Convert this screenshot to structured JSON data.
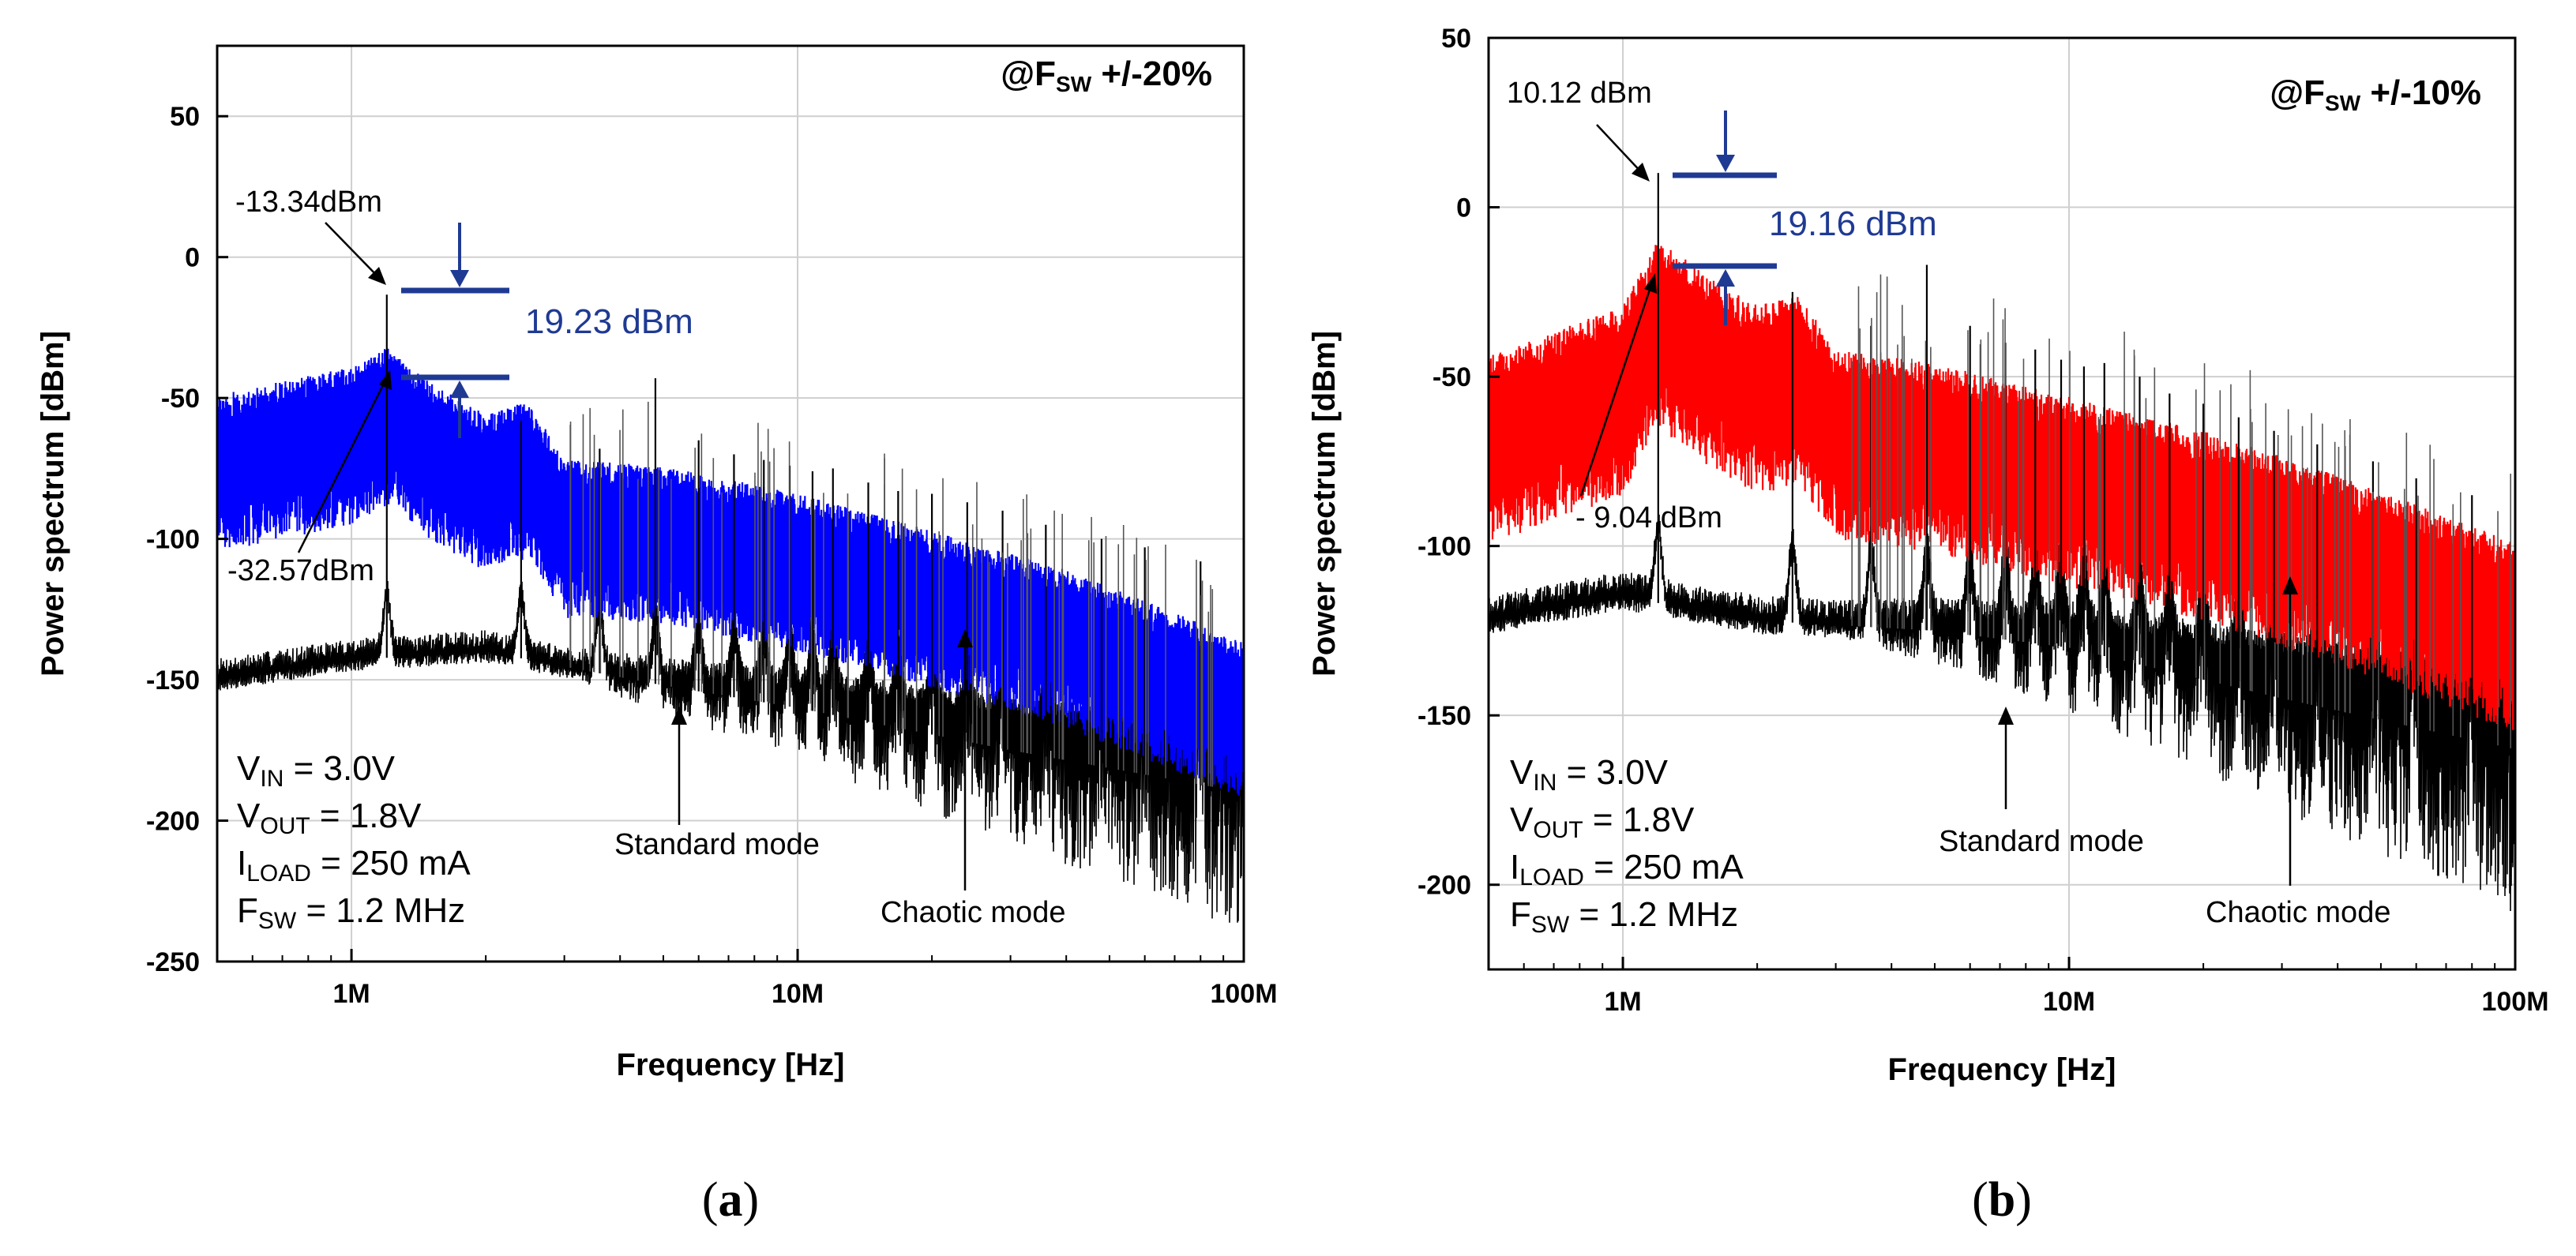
{
  "chart_data": [
    {
      "type": "line",
      "panel_label": "a",
      "mode_tag": {
        "prefix": "@F",
        "sub": "SW",
        "suffix": " +/-20%"
      },
      "xlabel": "Frequency [Hz]",
      "ylabel": "Power spectrum [dBm]",
      "x_scale": "log",
      "xlim": [
        500000,
        100000000
      ],
      "ylim": [
        -250,
        75
      ],
      "x_ticks": [
        {
          "value": 1000000,
          "label": "1M"
        },
        {
          "value": 10000000,
          "label": "10M"
        },
        {
          "value": 100000000,
          "label": "100M"
        }
      ],
      "y_ticks": [
        {
          "value": 50,
          "label": "50"
        },
        {
          "value": 0,
          "label": "0"
        },
        {
          "value": -50,
          "label": "-50"
        },
        {
          "value": -100,
          "label": "-100"
        },
        {
          "value": -150,
          "label": "-150"
        },
        {
          "value": -200,
          "label": "-200"
        },
        {
          "value": -250,
          "label": "-250"
        }
      ],
      "grid": true,
      "series": [
        {
          "color": "#000000",
          "fsw": 1200000,
          "peak": -13.34,
          "envelope": [
            [
              500000,
              -150
            ],
            [
              1000000,
              -143
            ],
            [
              2000000,
              -140
            ],
            [
              5000000,
              -152
            ],
            [
              10000000,
              -160
            ],
            [
              30000000,
              -175
            ],
            [
              100000000,
              -190
            ]
          ],
          "harmonics": [
            [
              1200000,
              -13.34
            ],
            [
              2400000,
              -58
            ],
            [
              3600000,
              -68
            ],
            [
              4800000,
              -43
            ],
            [
              6000000,
              -65
            ],
            [
              7200000,
              -70
            ],
            [
              8400000,
              -72
            ],
            [
              9600000,
              -74
            ],
            [
              10800000,
              -76
            ],
            [
              12000000,
              -75
            ],
            [
              14400000,
              -80
            ],
            [
              16800000,
              -83
            ],
            [
              20000000,
              -84
            ],
            [
              24000000,
              -87
            ],
            [
              28800000,
              -90
            ],
            [
              36000000,
              -95
            ],
            [
              48000000,
              -100
            ],
            [
              60000000,
              -103
            ],
            [
              80000000,
              -108
            ]
          ]
        },
        {
          "color": "#0000ff",
          "fsw": 1200000,
          "peak": -32.57,
          "envelope": [
            [
              500000,
              -65
            ],
            [
              1000000,
              -55
            ],
            [
              1200000,
              -48
            ],
            [
              1500000,
              -60
            ],
            [
              2000000,
              -72
            ],
            [
              2500000,
              -67
            ],
            [
              3000000,
              -88
            ],
            [
              5000000,
              -90
            ],
            [
              10000000,
              -100
            ],
            [
              20000000,
              -113
            ],
            [
              40000000,
              -127
            ],
            [
              100000000,
              -152
            ]
          ]
        }
      ],
      "peak_labels": {
        "standard": "-13.34dBm",
        "chaotic": "-32.57dBm"
      },
      "difference_label": "19.23 dBm",
      "conditions": [
        {
          "prefix": "V",
          "sub": "IN",
          "suffix": " = 3.0V"
        },
        {
          "prefix": "V",
          "sub": "OUT",
          "suffix": " = 1.8V"
        },
        {
          "prefix": "I",
          "sub": "LOAD",
          "suffix": " = 250 mA"
        },
        {
          "prefix": "F",
          "sub": "SW",
          "suffix": " = 1.2 MHz"
        }
      ],
      "mode_labels": {
        "standard": "Standard mode",
        "chaotic": "Chaotic mode"
      }
    },
    {
      "type": "line",
      "panel_label": "b",
      "mode_tag": {
        "prefix": "@F",
        "sub": "SW",
        "suffix": " +/-10%"
      },
      "xlabel": "Frequency [Hz]",
      "ylabel": "Power spectrum [dBm]",
      "x_scale": "log",
      "xlim": [
        500000,
        100000000
      ],
      "ylim": [
        -225,
        50
      ],
      "x_ticks": [
        {
          "value": 1000000,
          "label": "1M"
        },
        {
          "value": 10000000,
          "label": "10M"
        },
        {
          "value": 100000000,
          "label": "100M"
        }
      ],
      "y_ticks": [
        {
          "value": 50,
          "label": "50"
        },
        {
          "value": 0,
          "label": "0"
        },
        {
          "value": -50,
          "label": "-50"
        },
        {
          "value": -100,
          "label": "-100"
        },
        {
          "value": -150,
          "label": "-150"
        },
        {
          "value": -200,
          "label": "-200"
        }
      ],
      "grid": true,
      "series": [
        {
          "color": "#000000",
          "fsw": 1200000,
          "peak": 10.12,
          "envelope": [
            [
              500000,
              -122
            ],
            [
              1000000,
              -115
            ],
            [
              2000000,
              -122
            ],
            [
              5000000,
              -125
            ],
            [
              10000000,
              -130
            ],
            [
              30000000,
              -145
            ],
            [
              100000000,
              -160
            ]
          ],
          "harmonics": [
            [
              1200000,
              10.12
            ],
            [
              2400000,
              -25
            ],
            [
              3600000,
              -35
            ],
            [
              4800000,
              -17
            ],
            [
              6000000,
              -35
            ],
            [
              7200000,
              -40
            ],
            [
              8400000,
              -42
            ],
            [
              9600000,
              -45
            ],
            [
              10800000,
              -47
            ],
            [
              12000000,
              -46
            ],
            [
              14400000,
              -50
            ],
            [
              16800000,
              -55
            ],
            [
              20000000,
              -58
            ],
            [
              24000000,
              -62
            ],
            [
              28800000,
              -66
            ],
            [
              36000000,
              -70
            ],
            [
              48000000,
              -75
            ],
            [
              60000000,
              -80
            ],
            [
              80000000,
              -85
            ]
          ]
        },
        {
          "color": "#ff0000",
          "fsw": 1200000,
          "peak": -9.04,
          "envelope": [
            [
              500000,
              -60
            ],
            [
              1000000,
              -45
            ],
            [
              1200000,
              -25
            ],
            [
              1500000,
              -35
            ],
            [
              2000000,
              -45
            ],
            [
              2500000,
              -42
            ],
            [
              3000000,
              -58
            ],
            [
              5000000,
              -62
            ],
            [
              10000000,
              -72
            ],
            [
              20000000,
              -82
            ],
            [
              40000000,
              -95
            ],
            [
              100000000,
              -115
            ]
          ]
        }
      ],
      "peak_labels": {
        "standard": "10.12 dBm",
        "chaotic": "- 9.04 dBm"
      },
      "difference_label": "19.16 dBm",
      "conditions": [
        {
          "prefix": "V",
          "sub": "IN",
          "suffix": " = 3.0V"
        },
        {
          "prefix": "V",
          "sub": "OUT",
          "suffix": " = 1.8V"
        },
        {
          "prefix": "I",
          "sub": "LOAD",
          "suffix": " = 250 mA"
        },
        {
          "prefix": "F",
          "sub": "SW",
          "suffix": " = 1.2 MHz"
        }
      ],
      "mode_labels": {
        "standard": "Standard mode",
        "chaotic": "Chaotic mode"
      }
    }
  ]
}
